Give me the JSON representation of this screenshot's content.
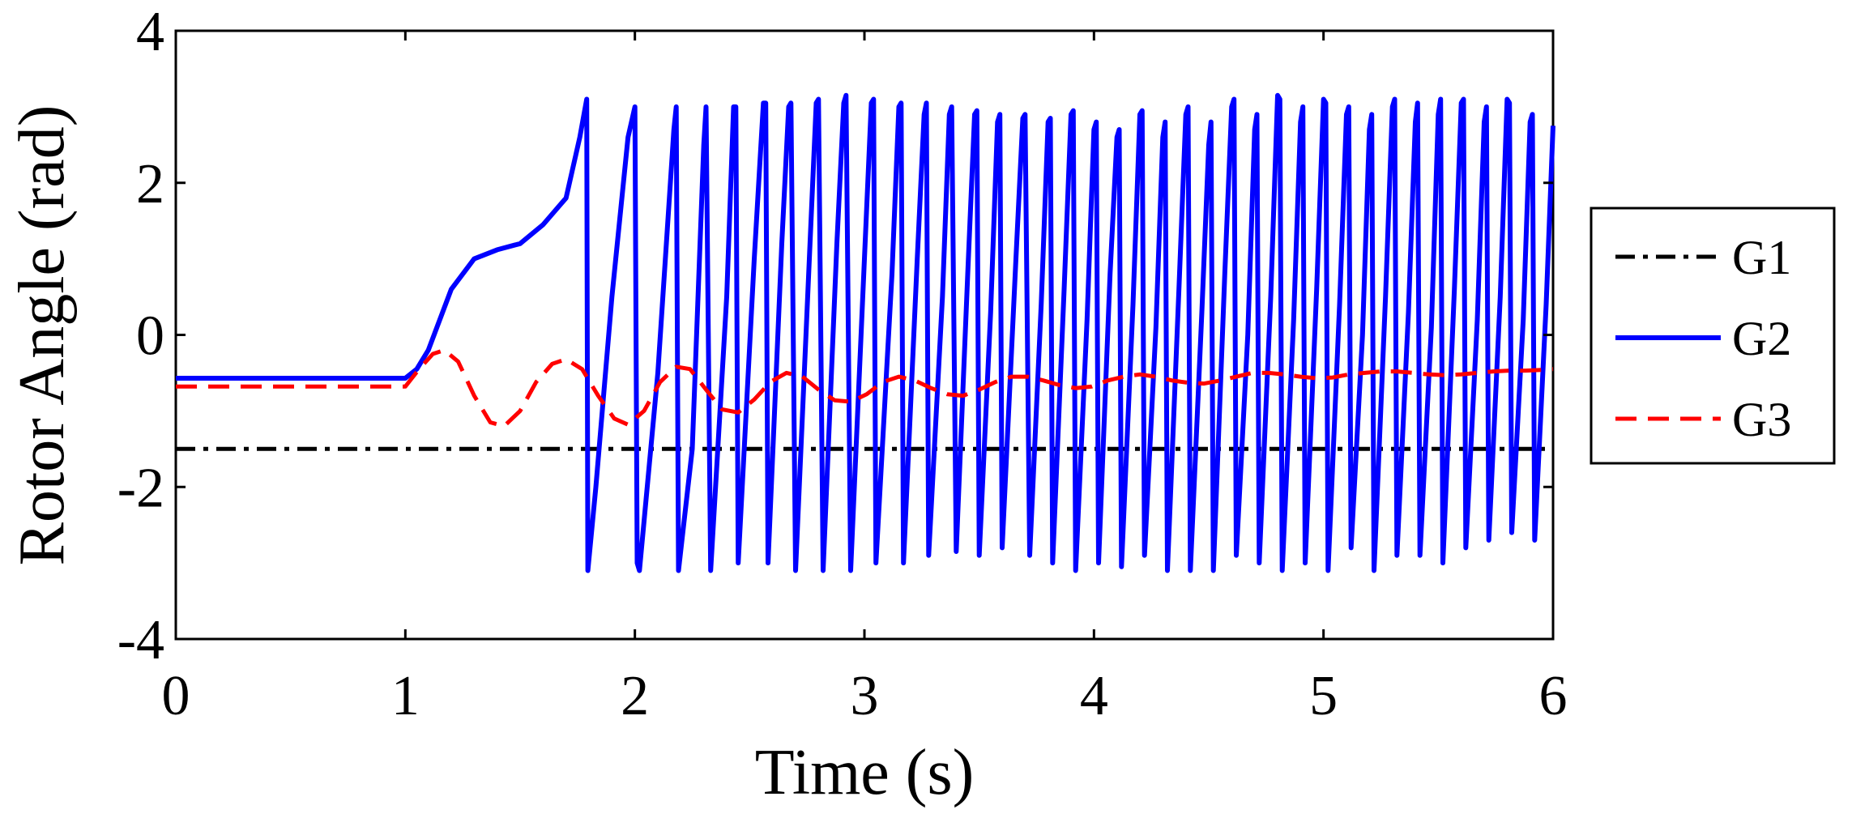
{
  "chart_data": {
    "type": "line",
    "title": "",
    "xlabel": "Time (s)",
    "ylabel": "Rotor Angle (rad)",
    "xlim": [
      0,
      6
    ],
    "ylim": [
      -4,
      4
    ],
    "xticks": [
      0,
      1,
      2,
      3,
      4,
      5,
      6
    ],
    "yticks": [
      -4,
      -2,
      0,
      2,
      4
    ],
    "xtick_labels": [
      "0",
      "1",
      "2",
      "3",
      "4",
      "5",
      "6"
    ],
    "ytick_labels": [
      "-4",
      "-2",
      "0",
      "2",
      "4"
    ],
    "grid": false,
    "legend_position": "right",
    "series": [
      {
        "name": "G1",
        "color": "#000000",
        "style": "dash-dot",
        "x": [
          0,
          6
        ],
        "y": [
          -1.5,
          -1.5
        ]
      },
      {
        "name": "G2",
        "color": "#0000ff",
        "style": "solid",
        "x": [
          0,
          1.0,
          1.05,
          1.1,
          1.2,
          1.3,
          1.4,
          1.5,
          1.6,
          1.7,
          1.76,
          1.79,
          1.795,
          1.83,
          1.9,
          1.97,
          2.0,
          2.01,
          2.02,
          2.1,
          2.17,
          2.18,
          2.19,
          2.25,
          2.3,
          2.31,
          2.33,
          2.4,
          2.43,
          2.44,
          2.45,
          2.52,
          2.56,
          2.57,
          2.58,
          2.64,
          2.67,
          2.68,
          2.7,
          2.76,
          2.79,
          2.8,
          2.82,
          2.88,
          2.91,
          2.92,
          2.94,
          3.0,
          3.03,
          3.04,
          3.05,
          3.12,
          3.15,
          3.16,
          3.17,
          3.23,
          3.26,
          3.27,
          3.28,
          3.34,
          3.37,
          3.38,
          3.4,
          3.45,
          3.48,
          3.49,
          3.5,
          3.55,
          3.58,
          3.59,
          3.6,
          3.66,
          3.69,
          3.7,
          3.72,
          3.77,
          3.8,
          3.81,
          3.82,
          3.87,
          3.9,
          3.91,
          3.92,
          3.97,
          4.0,
          4.01,
          4.02,
          4.07,
          4.1,
          4.11,
          4.12,
          4.17,
          4.2,
          4.21,
          4.22,
          4.27,
          4.3,
          4.31,
          4.32,
          4.37,
          4.4,
          4.41,
          4.42,
          4.47,
          4.5,
          4.51,
          4.52,
          4.57,
          4.6,
          4.61,
          4.62,
          4.67,
          4.7,
          4.71,
          4.72,
          4.77,
          4.8,
          4.81,
          4.82,
          4.87,
          4.9,
          4.91,
          4.92,
          4.97,
          5.0,
          5.01,
          5.02,
          5.07,
          5.1,
          5.11,
          5.12,
          5.17,
          5.2,
          5.21,
          5.22,
          5.27,
          5.3,
          5.31,
          5.32,
          5.37,
          5.4,
          5.41,
          5.42,
          5.47,
          5.5,
          5.51,
          5.52,
          5.57,
          5.6,
          5.61,
          5.62,
          5.67,
          5.7,
          5.71,
          5.72,
          5.77,
          5.8,
          5.81,
          5.82,
          5.87,
          5.9,
          5.91,
          5.92,
          5.97,
          6.0
        ],
        "y": [
          -0.57,
          -0.57,
          -0.45,
          -0.2,
          0.6,
          1.0,
          1.12,
          1.2,
          1.45,
          1.8,
          2.6,
          3.1,
          -3.1,
          -2.0,
          0.5,
          2.6,
          3.0,
          -3.0,
          -3.1,
          -0.5,
          2.7,
          3.0,
          -3.1,
          -1.5,
          2.5,
          3.0,
          -3.1,
          0.5,
          3.0,
          3.0,
          -3.0,
          1.0,
          3.05,
          3.05,
          -3.0,
          1.2,
          3.0,
          3.05,
          -3.1,
          1.0,
          3.05,
          3.1,
          -3.1,
          1.2,
          3.05,
          3.15,
          -3.1,
          1.0,
          3.05,
          3.1,
          -3.0,
          0.8,
          3.0,
          3.05,
          -3.0,
          1.0,
          2.9,
          3.05,
          -2.9,
          0.5,
          2.9,
          3.0,
          -2.85,
          0.8,
          2.9,
          2.95,
          -2.9,
          0.3,
          2.8,
          2.9,
          -2.8,
          1.0,
          2.85,
          2.9,
          -2.9,
          0.4,
          2.8,
          2.85,
          -3.0,
          0.6,
          2.9,
          2.95,
          -3.1,
          0.2,
          2.7,
          2.8,
          -3.0,
          0.8,
          2.6,
          2.7,
          -3.05,
          0.4,
          2.9,
          2.95,
          -2.9,
          0.1,
          2.6,
          2.8,
          -3.1,
          0.6,
          2.9,
          3.0,
          -3.1,
          0.3,
          2.5,
          2.8,
          -3.1,
          0.8,
          3.0,
          3.1,
          -2.9,
          0.0,
          2.7,
          2.9,
          -3.0,
          0.5,
          3.15,
          3.1,
          -3.1,
          0.2,
          2.8,
          3.0,
          -3.0,
          0.6,
          3.1,
          3.05,
          -3.1,
          0.4,
          2.9,
          3.0,
          -2.8,
          0.0,
          2.7,
          2.9,
          -3.1,
          0.5,
          3.0,
          3.1,
          -2.9,
          0.3,
          2.8,
          3.05,
          -2.9,
          0.1,
          2.9,
          3.1,
          -3.0,
          0.6,
          3.05,
          3.1,
          -2.8,
          0.2,
          2.8,
          3.0,
          -2.7,
          0.5,
          3.1,
          3.05,
          -2.6,
          0.2,
          2.8,
          2.9,
          -2.7,
          0.4,
          2.75
        ]
      },
      {
        "name": "G3",
        "color": "#ff0000",
        "style": "dashed",
        "x": [
          0,
          1.0,
          1.06,
          1.12,
          1.17,
          1.23,
          1.3,
          1.37,
          1.43,
          1.5,
          1.57,
          1.64,
          1.7,
          1.77,
          1.84,
          1.91,
          1.97,
          2.04,
          2.11,
          2.18,
          2.24,
          2.31,
          2.38,
          2.45,
          2.52,
          2.59,
          2.66,
          2.73,
          2.8,
          2.87,
          2.94,
          3.01,
          3.08,
          3.15,
          3.22,
          3.29,
          3.36,
          3.43,
          3.5,
          3.57,
          3.64,
          3.71,
          3.78,
          3.85,
          3.92,
          3.99,
          4.06,
          4.13,
          4.2,
          4.27,
          4.34,
          4.41,
          4.48,
          4.55,
          4.62,
          4.69,
          4.76,
          4.83,
          4.9,
          4.97,
          5.04,
          5.11,
          5.18,
          5.25,
          5.32,
          5.39,
          5.46,
          5.53,
          5.6,
          5.67,
          5.74,
          5.81,
          5.88,
          5.95,
          6.0
        ],
        "y": [
          -0.68,
          -0.68,
          -0.45,
          -0.25,
          -0.2,
          -0.35,
          -0.8,
          -1.15,
          -1.2,
          -1.0,
          -0.62,
          -0.38,
          -0.32,
          -0.45,
          -0.8,
          -1.1,
          -1.18,
          -1.0,
          -0.62,
          -0.42,
          -0.45,
          -0.72,
          -0.98,
          -1.02,
          -0.85,
          -0.62,
          -0.5,
          -0.55,
          -0.72,
          -0.86,
          -0.88,
          -0.78,
          -0.62,
          -0.55,
          -0.6,
          -0.7,
          -0.78,
          -0.8,
          -0.72,
          -0.62,
          -0.55,
          -0.55,
          -0.6,
          -0.66,
          -0.7,
          -0.68,
          -0.6,
          -0.55,
          -0.52,
          -0.55,
          -0.6,
          -0.63,
          -0.64,
          -0.6,
          -0.55,
          -0.5,
          -0.5,
          -0.52,
          -0.55,
          -0.57,
          -0.56,
          -0.52,
          -0.5,
          -0.48,
          -0.48,
          -0.5,
          -0.52,
          -0.53,
          -0.52,
          -0.5,
          -0.48,
          -0.47,
          -0.47,
          -0.46,
          -0.45
        ]
      }
    ]
  }
}
